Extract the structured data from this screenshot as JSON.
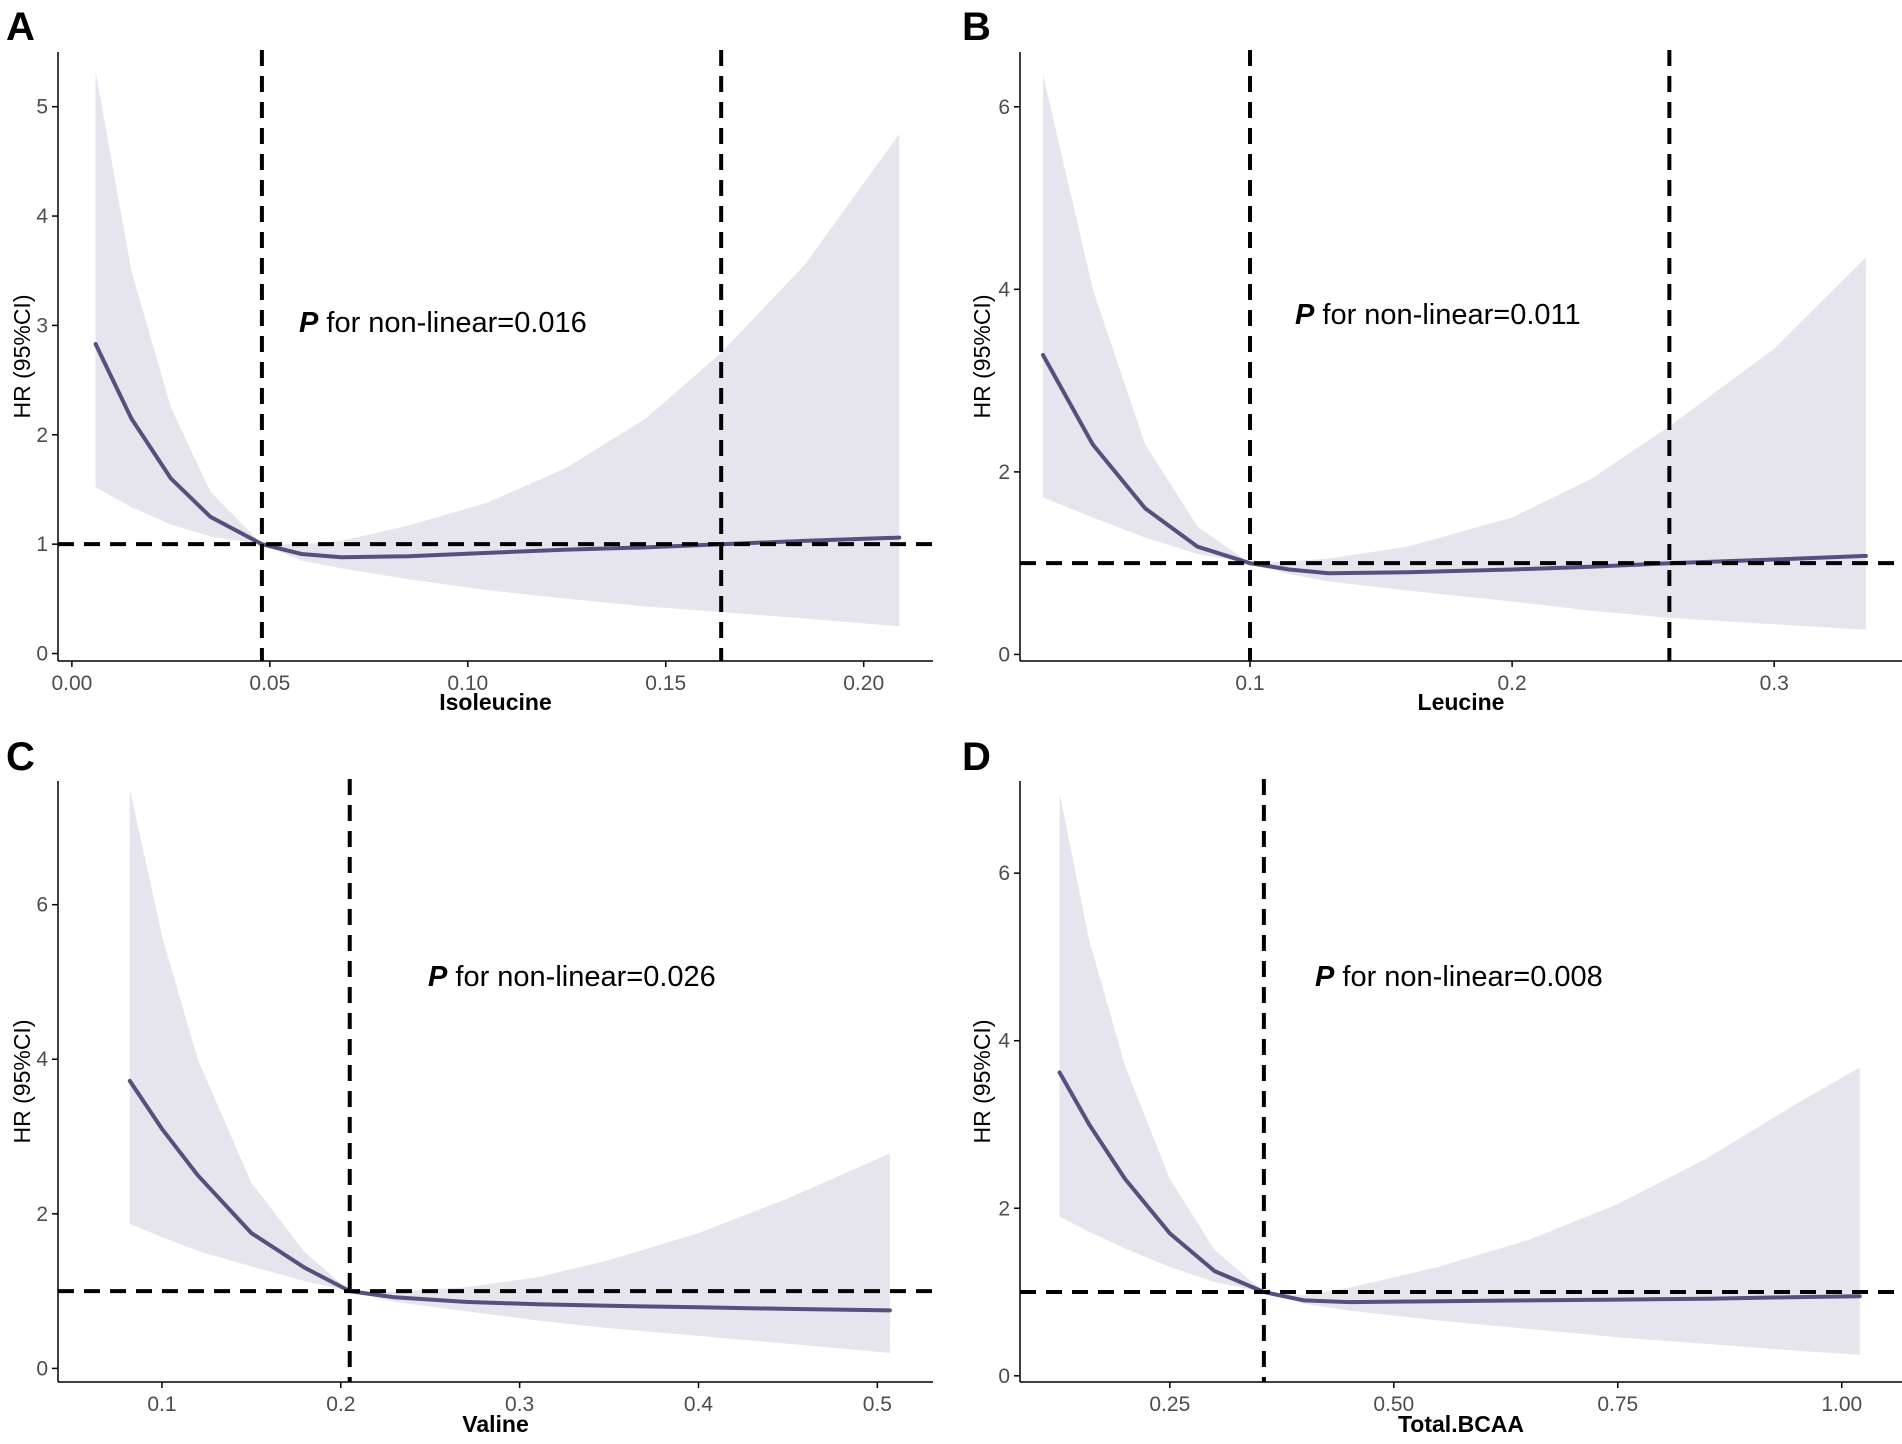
{
  "colors": {
    "ribbon": "#e6e4ec",
    "curve": "#57507f",
    "reference": "#000000",
    "axis": "#000000"
  },
  "chart_data": [
    {
      "panel": "A",
      "type": "line",
      "xlabel": "Isoleucine",
      "ylabel": "HR (95%CI)",
      "xlim": [
        -0.003,
        0.217
      ],
      "ylim": [
        -0.05,
        5.5
      ],
      "xticks": [
        0.0,
        0.05,
        0.1,
        0.15,
        0.2
      ],
      "xtick_labels": [
        "0.00",
        "0.05",
        "0.10",
        "0.15",
        "0.20"
      ],
      "yticks": [
        0,
        1,
        2,
        3,
        4,
        5
      ],
      "ytick_labels": [
        "0",
        "1",
        "2",
        "3",
        "4",
        "5"
      ],
      "annotation": {
        "p": "P",
        "text": " for non-linear=0.016"
      },
      "reference_hr": 1,
      "vlines": [
        0.048,
        0.164
      ],
      "x": [
        0.006,
        0.015,
        0.025,
        0.035,
        0.048,
        0.058,
        0.068,
        0.085,
        0.105,
        0.125,
        0.145,
        0.164,
        0.185,
        0.209
      ],
      "hr": [
        2.83,
        2.15,
        1.6,
        1.25,
        1.0,
        0.91,
        0.88,
        0.89,
        0.92,
        0.95,
        0.97,
        1.0,
        1.03,
        1.06
      ],
      "lower": [
        1.52,
        1.34,
        1.18,
        1.07,
        1.0,
        0.85,
        0.78,
        0.68,
        0.58,
        0.5,
        0.43,
        0.38,
        0.32,
        0.25
      ],
      "upper": [
        5.32,
        3.5,
        2.25,
        1.48,
        1.0,
        1.0,
        1.03,
        1.17,
        1.38,
        1.7,
        2.15,
        2.75,
        3.55,
        4.75
      ]
    },
    {
      "panel": "B",
      "type": "line",
      "xlabel": "Leucine",
      "ylabel": "HR (95%CI)",
      "xlim": [
        0.013,
        0.348
      ],
      "ylim": [
        -0.05,
        6.6
      ],
      "xticks": [
        0.1,
        0.2,
        0.3
      ],
      "xtick_labels": [
        "0.1",
        "0.2",
        "0.3"
      ],
      "yticks": [
        0,
        2,
        4,
        6
      ],
      "ytick_labels": [
        "0",
        "2",
        "4",
        "6"
      ],
      "annotation": {
        "p": "P",
        "text": " for non-linear=0.011"
      },
      "reference_hr": 1,
      "vlines": [
        0.1,
        0.26
      ],
      "x": [
        0.021,
        0.04,
        0.06,
        0.08,
        0.1,
        0.115,
        0.13,
        0.16,
        0.2,
        0.23,
        0.26,
        0.3,
        0.335
      ],
      "hr": [
        3.28,
        2.3,
        1.6,
        1.18,
        1.0,
        0.93,
        0.89,
        0.9,
        0.93,
        0.96,
        1.0,
        1.04,
        1.08
      ],
      "lower": [
        1.72,
        1.5,
        1.28,
        1.1,
        1.0,
        0.88,
        0.8,
        0.7,
        0.58,
        0.48,
        0.4,
        0.33,
        0.27
      ],
      "upper": [
        6.35,
        4.0,
        2.3,
        1.4,
        1.0,
        1.02,
        1.05,
        1.18,
        1.5,
        1.92,
        2.5,
        3.35,
        4.35
      ]
    },
    {
      "panel": "C",
      "type": "line",
      "xlabel": "Valine",
      "ylabel": "HR (95%CI)",
      "xlim": [
        0.043,
        0.53
      ],
      "ylim": [
        -0.15,
        7.6
      ],
      "xticks": [
        0.1,
        0.2,
        0.3,
        0.4,
        0.5
      ],
      "xtick_labels": [
        "0.1",
        "0.2",
        "0.3",
        "0.4",
        "0.5"
      ],
      "yticks": [
        0,
        2,
        4,
        6
      ],
      "ytick_labels": [
        "0",
        "2",
        "4",
        "6"
      ],
      "annotation": {
        "p": "P",
        "text": " for non-linear=0.026"
      },
      "reference_hr": 1,
      "vlines": [
        0.205
      ],
      "x": [
        0.082,
        0.1,
        0.12,
        0.15,
        0.18,
        0.205,
        0.23,
        0.27,
        0.31,
        0.35,
        0.4,
        0.45,
        0.507
      ],
      "hr": [
        3.72,
        3.1,
        2.5,
        1.75,
        1.3,
        1.0,
        0.92,
        0.86,
        0.83,
        0.81,
        0.79,
        0.77,
        0.75
      ],
      "lower": [
        1.87,
        1.7,
        1.52,
        1.32,
        1.13,
        1.0,
        0.86,
        0.74,
        0.62,
        0.52,
        0.42,
        0.32,
        0.2
      ],
      "upper": [
        7.5,
        5.6,
        4.0,
        2.4,
        1.5,
        1.0,
        0.99,
        1.05,
        1.18,
        1.4,
        1.75,
        2.2,
        2.78
      ]
    },
    {
      "panel": "D",
      "type": "line",
      "xlabel": "Total.BCAA",
      "ylabel": "HR (95%CI)",
      "xlim": [
        0.085,
        1.065
      ],
      "ylim": [
        -0.05,
        7.1
      ],
      "xticks": [
        0.25,
        0.5,
        0.75,
        1.0
      ],
      "xtick_labels": [
        "0.25",
        "0.50",
        "0.75",
        "1.00"
      ],
      "yticks": [
        0,
        2,
        4,
        6
      ],
      "ytick_labels": [
        "0",
        "2",
        "4",
        "6"
      ],
      "annotation": {
        "p": "P",
        "text": " for non-linear=0.008"
      },
      "reference_hr": 1,
      "vlines": [
        0.355
      ],
      "x": [
        0.127,
        0.16,
        0.2,
        0.25,
        0.3,
        0.355,
        0.4,
        0.45,
        0.55,
        0.65,
        0.75,
        0.85,
        0.95,
        1.02
      ],
      "hr": [
        3.62,
        3.0,
        2.35,
        1.7,
        1.25,
        1.0,
        0.9,
        0.88,
        0.89,
        0.9,
        0.91,
        0.92,
        0.94,
        0.95
      ],
      "lower": [
        1.9,
        1.72,
        1.52,
        1.3,
        1.12,
        1.0,
        0.86,
        0.78,
        0.66,
        0.56,
        0.46,
        0.38,
        0.3,
        0.25
      ],
      "upper": [
        6.95,
        5.2,
        3.7,
        2.35,
        1.5,
        1.0,
        0.96,
        1.05,
        1.3,
        1.62,
        2.05,
        2.6,
        3.25,
        3.68
      ]
    }
  ]
}
